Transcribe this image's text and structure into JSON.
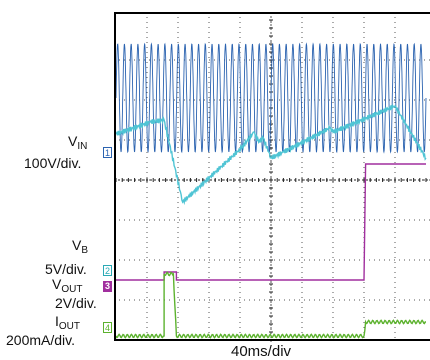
{
  "labels": {
    "vin_main": "V",
    "vin_sub": "IN",
    "vin_scale": "100V/div.",
    "vb": "V",
    "vb_sub": "B",
    "vb_scale": "5V/div.",
    "vout_main": "V",
    "vout_sub": "OUT",
    "vout_scale": "2V/div.",
    "iout_main": "I",
    "iout_sub": "OUT",
    "iout_scale": "200mA/div.",
    "time_scale": "40ms/div"
  },
  "channel_markers": [
    "1",
    "2",
    "3",
    "4"
  ],
  "colors": {
    "vin_ac": "#2b63b0",
    "vcap": "#4fc4d4",
    "vout": "#a12f9e",
    "iout": "#5cb22e",
    "channel_2": "#2aa9b5",
    "grid": "#555555",
    "frame": "#000000"
  },
  "chart_data": {
    "type": "line",
    "title": "",
    "xlabel": "40ms/div",
    "x_divisions": 10,
    "y_divisions": 8,
    "series": [
      {
        "name": "V_IN 100V/div.",
        "description_of_shape": "AC line voltage, dense sinusoid",
        "kind": "sine",
        "center_div": 6.05,
        "amplitude_div": 1.35,
        "cycles": 46
      },
      {
        "name": "V_B 5V/div.",
        "kind": "piecewise",
        "points": [
          [
            0.0,
            5.15
          ],
          [
            1.1,
            5.45
          ],
          [
            1.55,
            5.5
          ],
          [
            2.15,
            3.45
          ],
          [
            4.05,
            4.8
          ],
          [
            4.45,
            5.2
          ],
          [
            4.6,
            4.95
          ],
          [
            4.75,
            5.05
          ],
          [
            5.0,
            4.55
          ],
          [
            5.4,
            4.7
          ],
          [
            6.9,
            5.3
          ],
          [
            7.0,
            5.2
          ],
          [
            9.0,
            5.85
          ],
          [
            10.0,
            4.55
          ]
        ]
      },
      {
        "name": "V_OUT 2V/div.",
        "kind": "piecewise",
        "points": [
          [
            0.0,
            1.5
          ],
          [
            1.55,
            1.5
          ],
          [
            1.55,
            1.7
          ],
          [
            1.95,
            1.7
          ],
          [
            1.95,
            1.5
          ],
          [
            8.0,
            1.5
          ],
          [
            8.05,
            4.4
          ],
          [
            10.0,
            4.4
          ]
        ]
      },
      {
        "name": "I_OUT 200mA/div.",
        "kind": "piecewise",
        "points": [
          [
            0.0,
            0.1
          ],
          [
            1.55,
            0.1
          ],
          [
            1.55,
            1.65
          ],
          [
            1.85,
            1.65
          ],
          [
            1.95,
            0.1
          ],
          [
            8.0,
            0.1
          ],
          [
            8.05,
            0.45
          ],
          [
            10.0,
            0.45
          ]
        ]
      }
    ]
  }
}
